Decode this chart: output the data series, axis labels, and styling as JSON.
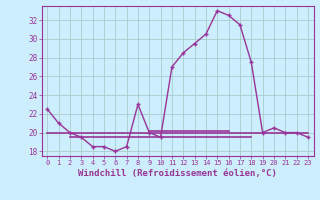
{
  "title": "",
  "xlabel": "Windchill (Refroidissement éolien,°C)",
  "ylabel": "",
  "bg_color": "#cceeff",
  "grid_color": "#aacccc",
  "line_color": "#993399",
  "hours": [
    0,
    1,
    2,
    3,
    4,
    5,
    6,
    7,
    8,
    9,
    10,
    11,
    12,
    13,
    14,
    15,
    16,
    17,
    18,
    19,
    20,
    21,
    22,
    23
  ],
  "windchill": [
    22.5,
    21.0,
    20.0,
    19.5,
    18.5,
    18.5,
    18.0,
    18.5,
    23.0,
    20.0,
    19.5,
    27.0,
    28.5,
    29.5,
    30.5,
    33.0,
    32.5,
    31.5,
    27.5,
    20.0,
    20.5,
    20.0,
    20.0,
    19.5
  ],
  "flat_line1_y": 20.0,
  "flat_line1_x0": 0,
  "flat_line1_x1": 23,
  "flat_line2_y": 19.5,
  "flat_line2_x0": 2,
  "flat_line2_x1": 18,
  "flat_line3_y": 20.2,
  "flat_line3_x0": 9,
  "flat_line3_x1": 16,
  "ylim": [
    17.5,
    33.5
  ],
  "yticks": [
    18,
    20,
    22,
    24,
    26,
    28,
    30,
    32
  ],
  "xticks": [
    0,
    1,
    2,
    3,
    4,
    5,
    6,
    7,
    8,
    9,
    10,
    11,
    12,
    13,
    14,
    15,
    16,
    17,
    18,
    19,
    20,
    21,
    22,
    23
  ],
  "font_color": "#993399",
  "font_size": 6.5
}
